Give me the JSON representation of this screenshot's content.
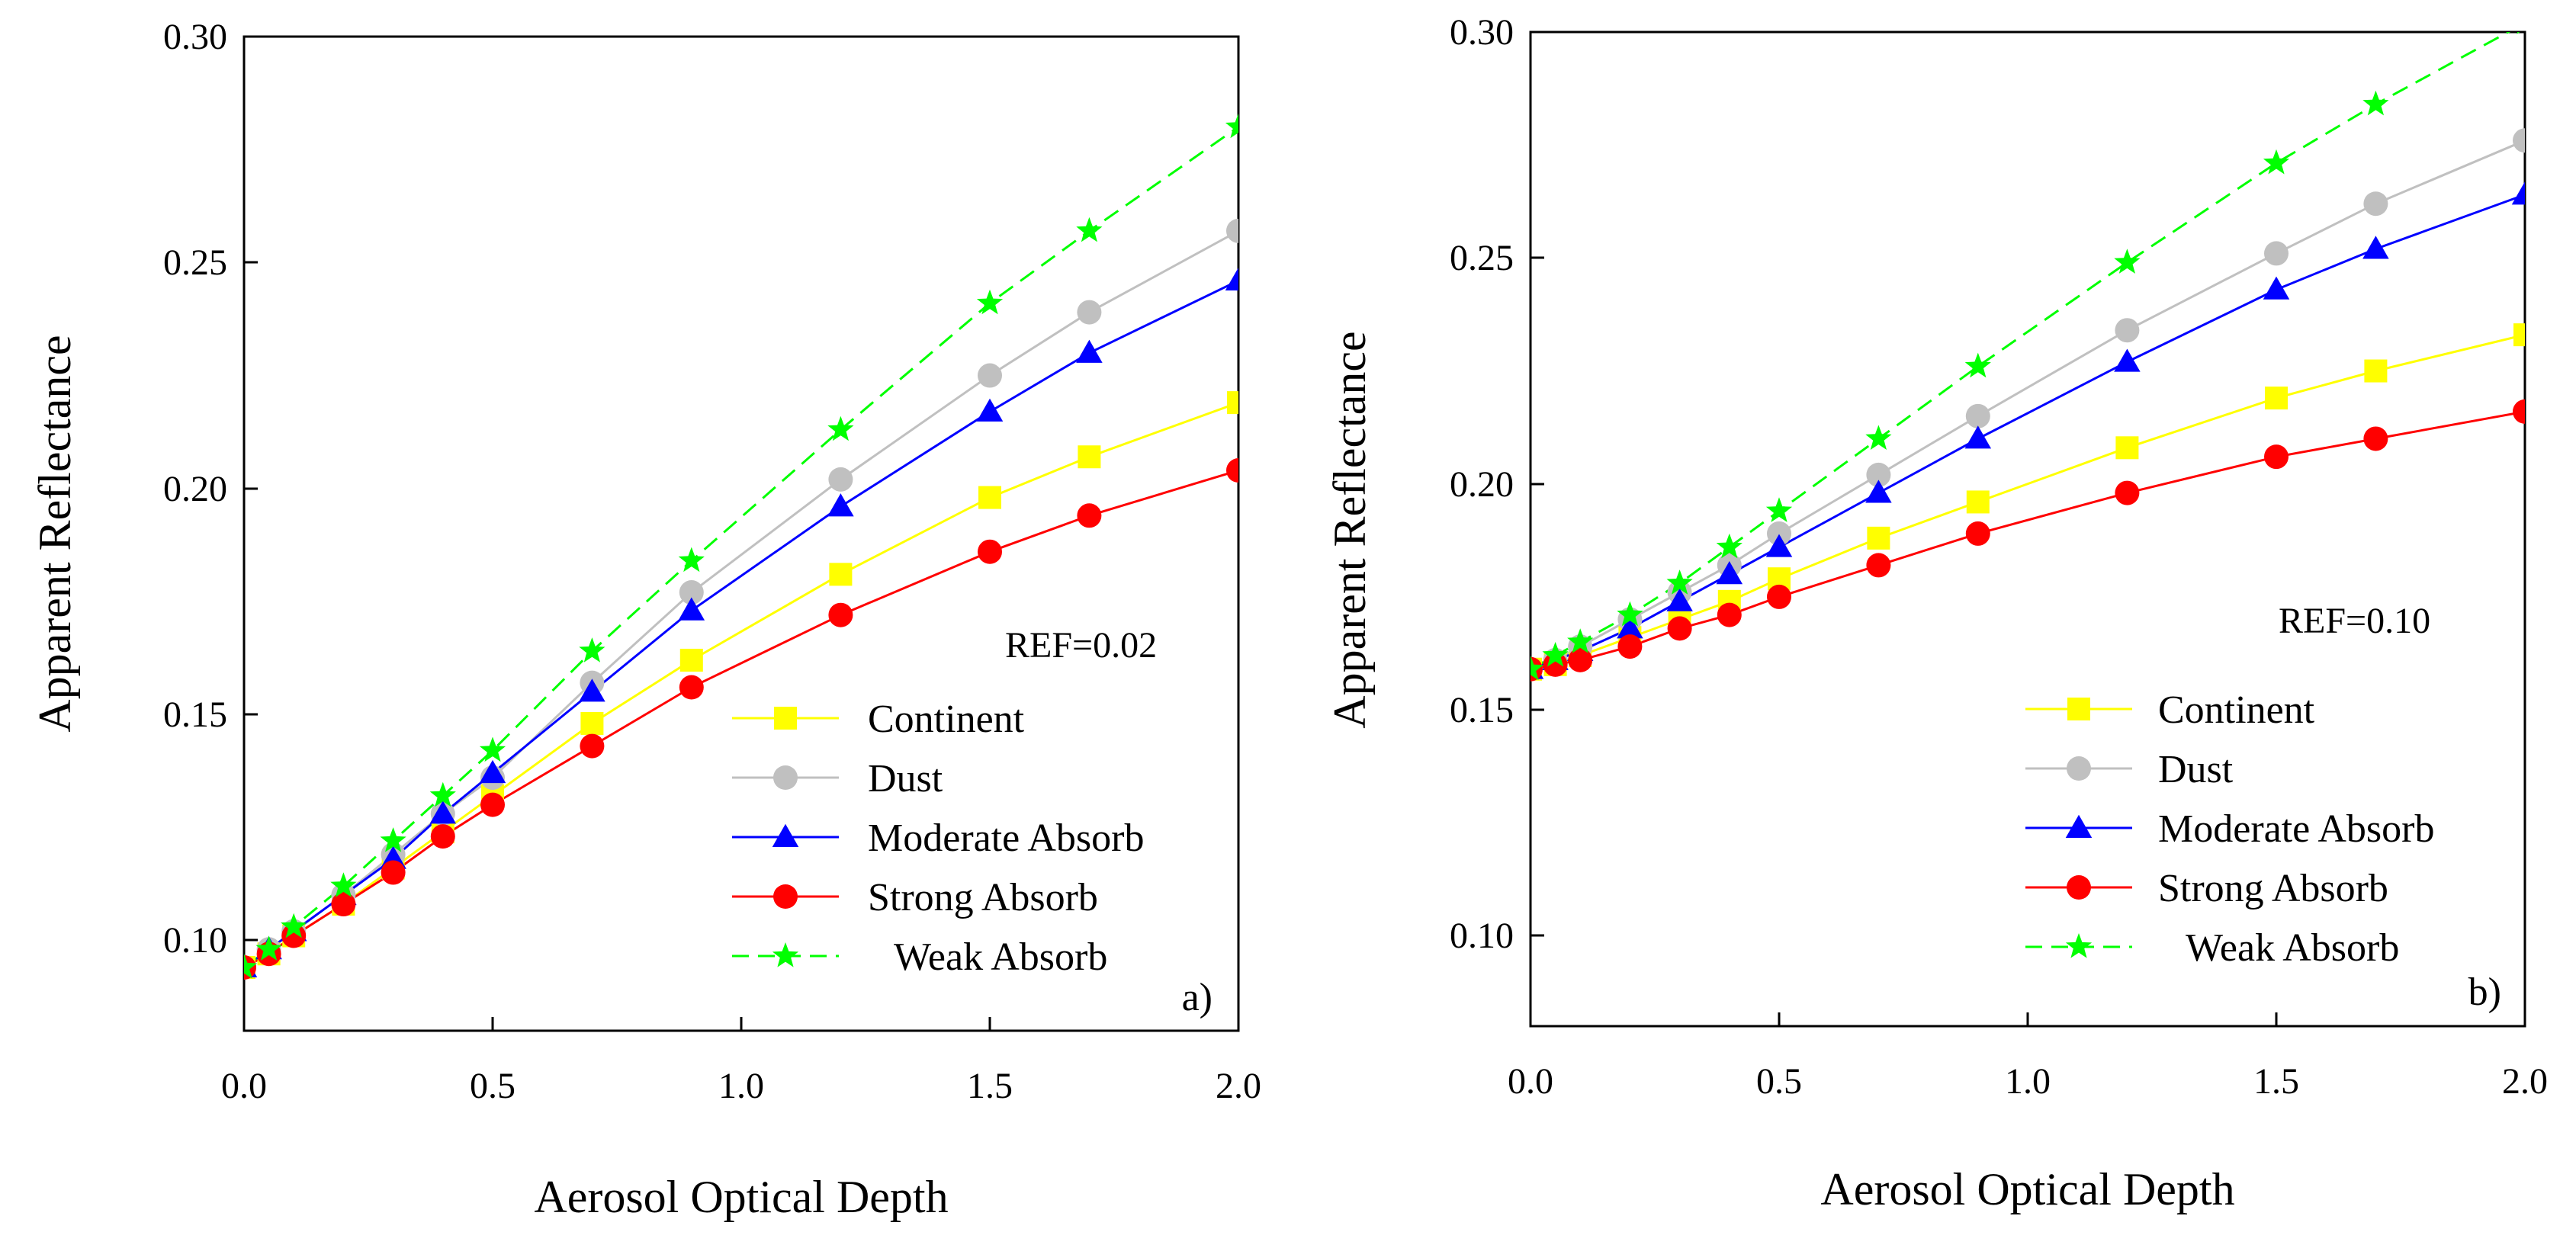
{
  "chart_data": [
    {
      "type": "line",
      "panel_label": "a)",
      "annotation": "REF=0.02",
      "xlabel": "Aerosol Optical Depth",
      "ylabel": "Apparent Reflectance",
      "xlim": [
        0,
        2
      ],
      "ylim": [
        0.08,
        0.3
      ],
      "x_ticks": [
        "0.0",
        "0.5",
        "1.0",
        "1.5",
        "2.0"
      ],
      "y_ticks": [
        "0.10",
        "0.15",
        "0.20",
        "0.25",
        "0.30"
      ],
      "x": [
        0.0,
        0.05,
        0.1,
        0.2,
        0.3,
        0.4,
        0.5,
        0.7,
        0.9,
        1.2,
        1.5,
        1.7,
        2.0
      ],
      "legend_position": "lower-right",
      "series": [
        {
          "name": "Continent",
          "color": "#ffff00",
          "marker": "square",
          "dash": false,
          "values": [
            0.094,
            0.097,
            0.101,
            0.108,
            0.116,
            0.124,
            0.132,
            0.148,
            0.162,
            0.181,
            0.198,
            0.207,
            0.219
          ]
        },
        {
          "name": "Dust",
          "color": "#c0c0c0",
          "marker": "circle",
          "dash": false,
          "values": [
            0.094,
            0.098,
            0.102,
            0.11,
            0.119,
            0.128,
            0.136,
            0.157,
            0.177,
            0.202,
            0.225,
            0.239,
            0.257
          ]
        },
        {
          "name": "Moderate Absorb",
          "color": "#0000ff",
          "marker": "triangle",
          "dash": false,
          "values": [
            0.094,
            0.098,
            0.102,
            0.11,
            0.118,
            0.128,
            0.137,
            0.155,
            0.173,
            0.196,
            0.217,
            0.23,
            0.246
          ]
        },
        {
          "name": "Strong Absorb",
          "color": "#ff0000",
          "marker": "dot",
          "dash": false,
          "values": [
            0.094,
            0.097,
            0.101,
            0.108,
            0.115,
            0.123,
            0.13,
            0.143,
            0.156,
            0.172,
            0.186,
            0.194,
            0.204
          ]
        },
        {
          "name": "Weak Absorb",
          "color": "#00ff00",
          "marker": "star",
          "dash": true,
          "values": [
            0.094,
            0.098,
            0.103,
            0.112,
            0.122,
            0.132,
            0.142,
            0.164,
            0.184,
            0.213,
            0.241,
            0.257,
            0.28
          ]
        }
      ]
    },
    {
      "type": "line",
      "panel_label": "b)",
      "annotation": "REF=0.10",
      "xlabel": "Aerosol Optical Depth",
      "ylabel": "Apparent Reflectance",
      "xlim": [
        0,
        2
      ],
      "ylim": [
        0.08,
        0.3
      ],
      "x_ticks": [
        "0.0",
        "0.5",
        "1.0",
        "1.5",
        "2.0"
      ],
      "y_ticks": [
        "0.10",
        "0.15",
        "0.20",
        "0.25",
        "0.30"
      ],
      "x": [
        0.0,
        0.05,
        0.1,
        0.2,
        0.3,
        0.4,
        0.5,
        0.7,
        0.9,
        1.2,
        1.5,
        1.7,
        2.0
      ],
      "legend_position": "lower-center",
      "series": [
        {
          "name": "Continent",
          "color": "#ffff00",
          "marker": "square",
          "dash": false,
          "values": [
            0.159,
            0.16,
            0.162,
            0.166,
            0.17,
            0.174,
            0.179,
            0.188,
            0.196,
            0.208,
            0.219,
            0.225,
            0.233
          ]
        },
        {
          "name": "Dust",
          "color": "#c0c0c0",
          "marker": "circle",
          "dash": false,
          "values": [
            0.159,
            0.161,
            0.164,
            0.17,
            0.176,
            0.182,
            0.189,
            0.202,
            0.215,
            0.234,
            0.251,
            0.262,
            0.276
          ]
        },
        {
          "name": "Moderate Absorb",
          "color": "#0000ff",
          "marker": "triangle",
          "dash": false,
          "values": [
            0.159,
            0.161,
            0.163,
            0.168,
            0.174,
            0.18,
            0.186,
            0.198,
            0.21,
            0.227,
            0.243,
            0.252,
            0.264
          ]
        },
        {
          "name": "Strong Absorb",
          "color": "#ff0000",
          "marker": "dot",
          "dash": false,
          "values": [
            0.159,
            0.16,
            0.161,
            0.164,
            0.168,
            0.171,
            0.175,
            0.182,
            0.189,
            0.198,
            0.206,
            0.21,
            0.216
          ]
        },
        {
          "name": "Weak Absorb",
          "color": "#00ff00",
          "marker": "star",
          "dash": true,
          "values": [
            0.159,
            0.162,
            0.165,
            0.171,
            0.178,
            0.186,
            0.194,
            0.21,
            0.226,
            0.249,
            0.271,
            0.284,
            0.302
          ]
        }
      ]
    }
  ]
}
